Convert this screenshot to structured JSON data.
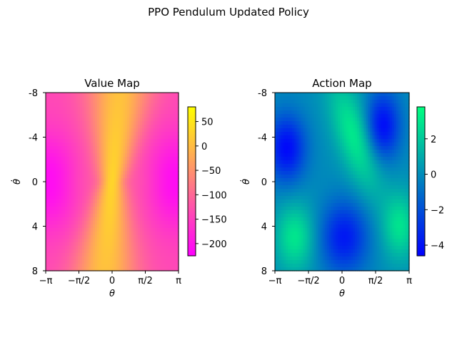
{
  "figure": {
    "suptitle": "PPO Pendulum Updated Policy"
  },
  "chart_data": [
    {
      "type": "heatmap",
      "title": "Value Map",
      "xlabel": "θ",
      "ylabel": "θ̇",
      "x_range": [
        -3.14159,
        3.14159
      ],
      "y_range": [
        -8,
        8
      ],
      "y_inverted": true,
      "x_ticks": [
        "−π",
        "−π/2",
        "0",
        "π/2",
        "π"
      ],
      "y_ticks": [
        "-8",
        "-4",
        "0",
        "4",
        "8"
      ],
      "colormap": "spring",
      "colormap_colors": [
        "#ff00ff",
        "#ffff00"
      ],
      "vmin": -225,
      "vmax": 80,
      "colorbar_ticks": [
        50,
        0,
        -50,
        -100,
        -150,
        -200
      ],
      "colorbar_tick_labels": [
        "50",
        "0",
        "−50",
        "−100",
        "−150",
        "−200"
      ]
    },
    {
      "type": "heatmap",
      "title": "Action Map",
      "xlabel": "θ",
      "ylabel": "θ̇",
      "x_range": [
        -3.14159,
        3.14159
      ],
      "y_range": [
        -8,
        8
      ],
      "y_inverted": true,
      "x_ticks": [
        "−π",
        "−π/2",
        "0",
        "π/2",
        "π"
      ],
      "y_ticks": [
        "-8",
        "-4",
        "0",
        "4",
        "8"
      ],
      "colormap": "winter",
      "colormap_colors": [
        "#0000ff",
        "#00ff80"
      ],
      "vmin": -4.6,
      "vmax": 3.8,
      "colorbar_ticks": [
        2,
        0,
        -2,
        -4
      ],
      "colorbar_tick_labels": [
        "2",
        "0",
        "−2",
        "−4"
      ]
    }
  ]
}
